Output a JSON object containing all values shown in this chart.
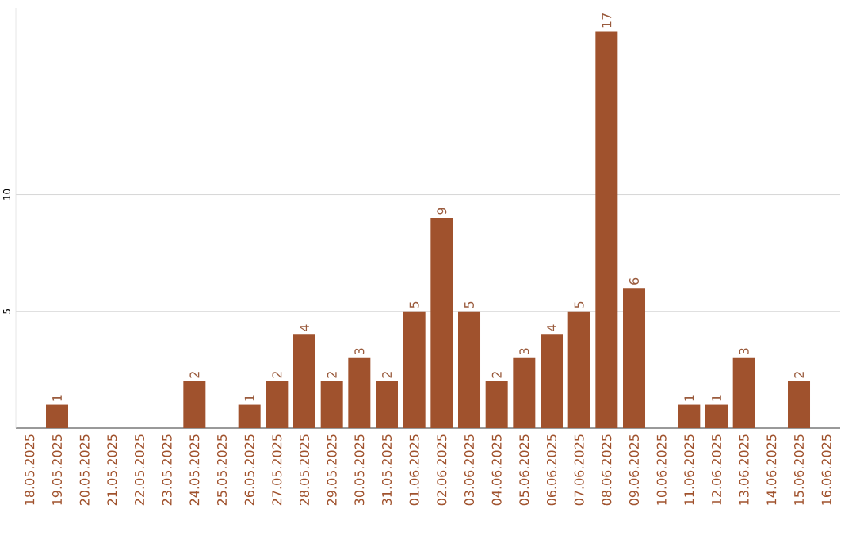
{
  "chart_data": {
    "type": "bar",
    "color": "#a0522d",
    "categories": [
      "18.05.2025",
      "19.05.2025",
      "20.05.2025",
      "21.05.2025",
      "22.05.2025",
      "23.05.2025",
      "24.05.2025",
      "25.05.2025",
      "26.05.2025",
      "27.05.2025",
      "28.05.2025",
      "29.05.2025",
      "30.05.2025",
      "31.05.2025",
      "01.06.2025",
      "02.06.2025",
      "03.06.2025",
      "04.06.2025",
      "05.06.2025",
      "06.06.2025",
      "07.06.2025",
      "08.06.2025",
      "09.06.2025",
      "10.06.2025",
      "11.06.2025",
      "12.06.2025",
      "13.06.2025",
      "14.06.2025",
      "15.06.2025",
      "16.06.2025"
    ],
    "values": [
      0,
      1,
      0,
      0,
      0,
      0,
      2,
      0,
      1,
      2,
      4,
      2,
      3,
      2,
      5,
      9,
      5,
      2,
      3,
      4,
      5,
      17,
      6,
      0,
      1,
      1,
      3,
      0,
      2,
      0
    ],
    "value_labels": [
      null,
      "1",
      null,
      null,
      null,
      null,
      "2",
      null,
      "1",
      "2",
      "4",
      "2",
      "3",
      "2",
      "5",
      "9",
      "5",
      "2",
      "3",
      "4",
      "5",
      "17",
      "6",
      null,
      "1",
      "1",
      "3",
      null,
      "2",
      null
    ],
    "ylim": [
      0,
      18
    ],
    "yticks": [
      5,
      10
    ],
    "grid": "y"
  }
}
